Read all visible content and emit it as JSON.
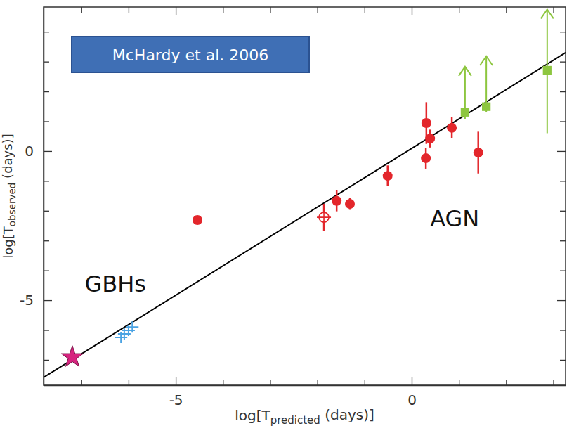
{
  "chart_data": {
    "type": "scatter",
    "source": "McHardy et al. 2006",
    "x_label": "log[Tpredicted (days)]",
    "y_label": "log[Tobserved (days)]",
    "xlim": [
      -7.8,
      3.26
    ],
    "ylim": [
      -7.85,
      4.83
    ],
    "xticks": [
      -5,
      0
    ],
    "yticks": [
      -5,
      0
    ],
    "x_minor_ticks": [
      -7,
      -6,
      -4,
      -3,
      -2,
      -1,
      1,
      2,
      3
    ],
    "y_minor_ticks": [
      -7,
      -6,
      -4,
      -3,
      -2,
      -1,
      1,
      2,
      3,
      4
    ],
    "annotations": [
      {
        "text": "GBHs",
        "x": -6.93,
        "y": -4.72
      },
      {
        "text": "AGN",
        "x": 0.39,
        "y": -2.52
      }
    ],
    "series": [
      {
        "type": "line",
        "color": "#000000",
        "line_style": "solid",
        "x": [
          -7.8,
          3.26
        ],
        "values": [
          -7.59,
          3.3
        ]
      },
      {
        "type": "scatter",
        "marker": "star",
        "color": "#d6247f",
        "x": [
          -7.19
        ],
        "values": [
          -6.91
        ]
      },
      {
        "type": "scatter",
        "marker": "cross",
        "color": "#4ba3e3",
        "x": [
          -6.16,
          -6.09,
          -6.0,
          -5.92
        ],
        "values": [
          -6.25,
          -6.13,
          -6.01,
          -5.9
        ]
      },
      {
        "type": "scatter",
        "marker": "circle",
        "color": "#e3262b",
        "x": [
          -4.54,
          -1.59,
          -1.31,
          -0.51,
          0.3,
          0.31,
          0.39,
          0.85,
          1.41
        ],
        "values": [
          -2.31,
          -1.67,
          -1.77,
          -0.83,
          -0.24,
          0.94,
          0.42,
          0.78,
          -0.05
        ],
        "errors": [
          0.1,
          0.35,
          0.2,
          0.35,
          0.35,
          0.7,
          0.3,
          0.35,
          0.7
        ]
      },
      {
        "type": "scatter",
        "marker": "circle-cross",
        "color": "#e3262b",
        "x": [
          -1.86
        ],
        "values": [
          -2.22
        ],
        "errors": [
          0.45
        ]
      },
      {
        "type": "scatter",
        "marker": "square",
        "color": "#8dc63f",
        "x": [
          1.13,
          1.58,
          2.87
        ],
        "values": [
          1.3,
          1.49,
          2.71
        ],
        "y_lower": [
          1.06,
          1.3,
          0.6
        ],
        "y_upper": [
          2.83,
          3.18,
          4.75
        ]
      }
    ]
  }
}
